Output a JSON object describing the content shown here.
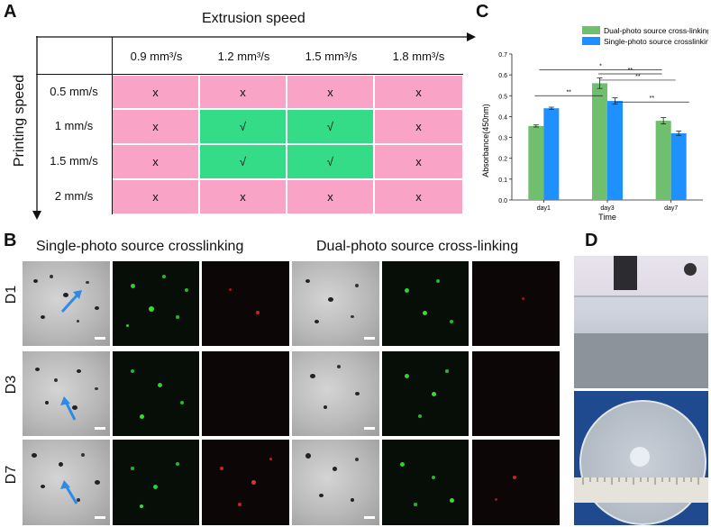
{
  "panels": {
    "a": "A",
    "b": "B",
    "c": "C",
    "d": "D"
  },
  "panel_a": {
    "column_axis_label": "Extrusion speed",
    "row_axis_label": "Printing speed",
    "columns": [
      "0.9 mm³/s",
      "1.2 mm³/s",
      "1.5 mm³/s",
      "1.8 mm³/s"
    ],
    "rows": [
      {
        "label": "0.5 mm/s",
        "cells": [
          "x",
          "x",
          "x",
          "x"
        ],
        "status": [
          "fail",
          "fail",
          "fail",
          "fail"
        ]
      },
      {
        "label": "1 mm/s",
        "cells": [
          "x",
          "√",
          "√",
          "x"
        ],
        "status": [
          "fail",
          "pass",
          "pass",
          "fail"
        ]
      },
      {
        "label": "1.5 mm/s",
        "cells": [
          "x",
          "√",
          "√",
          "x"
        ],
        "status": [
          "fail",
          "pass",
          "pass",
          "fail"
        ]
      },
      {
        "label": "2 mm/s",
        "cells": [
          "x",
          "x",
          "x",
          "x"
        ],
        "status": [
          "fail",
          "fail",
          "fail",
          "fail"
        ]
      }
    ],
    "colors": {
      "fail": "#f9a3c7",
      "pass": "#34dc88"
    }
  },
  "panel_b": {
    "left_title": "Single-photo source crosslinking",
    "right_title": "Dual-photo source cross-linking",
    "rows": [
      "D1",
      "D3",
      "D7"
    ]
  },
  "chart_data": {
    "type": "bar",
    "title": "",
    "xlabel": "Time",
    "ylabel": "Absorbance(450nm)",
    "categories": [
      "day1",
      "day3",
      "day7"
    ],
    "ylim": [
      0.0,
      0.7
    ],
    "yticks": [
      "0.0",
      "0.1",
      "0.2",
      "0.3",
      "0.4",
      "0.5",
      "0.6",
      "0.7"
    ],
    "legend_position": "top-right",
    "series": [
      {
        "name": "Dual-photo source cross-linking",
        "color": "#6fbf6f",
        "values": [
          0.355,
          0.56,
          0.38
        ],
        "errors": [
          0.005,
          0.025,
          0.015
        ]
      },
      {
        "name": "Single-photo source crosslinking",
        "color": "#1e90ff",
        "values": [
          0.44,
          0.475,
          0.32
        ],
        "errors": [
          0.005,
          0.015,
          0.01
        ]
      }
    ],
    "annotations": [
      "**",
      "*",
      "**",
      "**",
      "**"
    ]
  }
}
